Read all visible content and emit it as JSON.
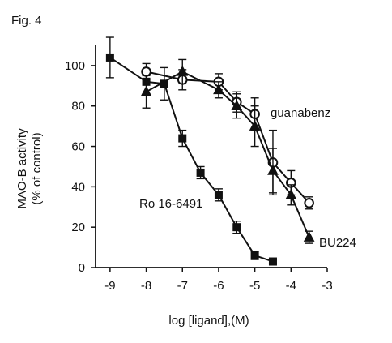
{
  "figure_label": "Fig. 4",
  "chart_data": {
    "type": "line",
    "title": "",
    "xlabel": "log  [ligand],(M)",
    "ylabel": [
      "MAO-B activity",
      "(% of control)"
    ],
    "xlim": [
      -9.4,
      -3.0
    ],
    "ylim": [
      0,
      110
    ],
    "xticks": [
      -9,
      -8,
      -7,
      -6,
      -5,
      -4,
      -3
    ],
    "yticks": [
      0,
      20,
      40,
      60,
      80,
      100
    ],
    "grid": false,
    "legend": "none",
    "series": [
      {
        "name": "Ro 16-6491",
        "marker": "filled-square",
        "color": "#111111",
        "x": [
          -9.0,
          -8.0,
          -7.5,
          -7.0,
          -6.5,
          -6.0,
          -5.5,
          -5.0,
          -4.5
        ],
        "y": [
          104,
          92,
          91,
          64,
          47,
          36,
          20,
          6,
          3
        ],
        "err": [
          10,
          6,
          8,
          4,
          3,
          3,
          3,
          2,
          1
        ]
      },
      {
        "name": "guanabenz",
        "marker": "open-circle",
        "color": "#111111",
        "x": [
          -8.0,
          -7.0,
          -6.0,
          -5.5,
          -5.0,
          -4.5,
          -4.0,
          -3.5
        ],
        "y": [
          97,
          93,
          92,
          82,
          76,
          52,
          42,
          32
        ],
        "err": [
          4,
          5,
          4,
          5,
          8,
          16,
          6,
          3
        ]
      },
      {
        "name": "BU224",
        "marker": "filled-triangle",
        "color": "#111111",
        "x": [
          -8.0,
          -7.0,
          -6.0,
          -5.5,
          -5.0,
          -4.5,
          -4.0,
          -3.5
        ],
        "y": [
          87,
          97,
          88,
          80,
          70,
          48,
          36,
          15
        ],
        "err": [
          8,
          6,
          4,
          6,
          10,
          11,
          5,
          3
        ]
      }
    ],
    "annotations": [
      {
        "text": "guanabenz",
        "series": "guanabenz"
      },
      {
        "text": "Ro 16-6491",
        "series": "Ro 16-6491"
      },
      {
        "text": "BU224",
        "series": "BU224"
      }
    ]
  }
}
